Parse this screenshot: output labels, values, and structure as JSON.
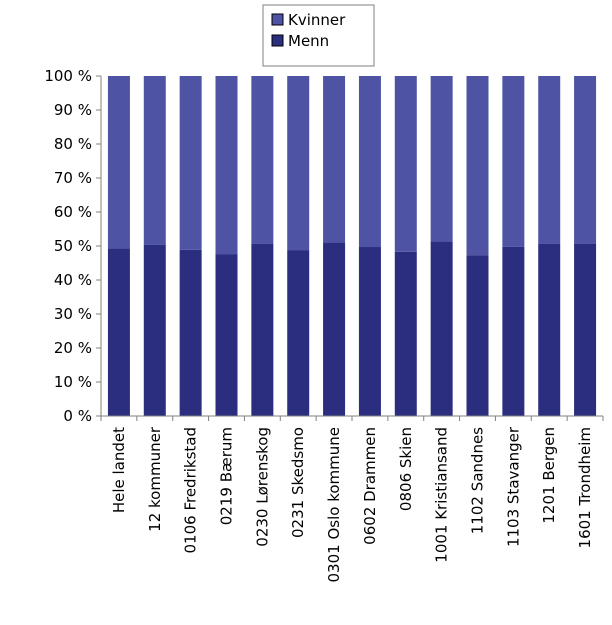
{
  "chart_data": {
    "type": "bar",
    "stacked": true,
    "percent_stacked": true,
    "categories": [
      "Hele landet",
      "12 kommuner",
      "0106 Fredrikstad",
      "0219 Bærum",
      "0230 Lørenskog",
      "0231 Skedsmo",
      "0301 Oslo kommune",
      "0602 Drammen",
      "0806 Skien",
      "1001 Kristiansand",
      "1102 Sandnes",
      "1103 Stavanger",
      "1201 Bergen",
      "1601 Trondheim"
    ],
    "series": [
      {
        "name": "Menn",
        "color": "#2b2e7f",
        "values": [
          49.3,
          50.4,
          48.9,
          47.5,
          50.6,
          48.8,
          51.1,
          49.7,
          48.3,
          51.3,
          47.3,
          49.8,
          50.6,
          50.7
        ]
      },
      {
        "name": "Kvinner",
        "color": "#4e53a3",
        "values": [
          50.7,
          49.6,
          51.1,
          52.5,
          49.4,
          51.2,
          48.9,
          50.3,
          51.7,
          48.7,
          52.7,
          50.2,
          49.4,
          49.3
        ]
      }
    ],
    "ylim": [
      0,
      100
    ],
    "yticks": [
      "0 %",
      "10 %",
      "20 %",
      "30 %",
      "40 %",
      "50 %",
      "60 %",
      "70 %",
      "80 %",
      "90 %",
      "100 %"
    ],
    "legend": {
      "position": "top-center",
      "entries": [
        "Kvinner",
        "Menn"
      ]
    },
    "grid": false
  }
}
